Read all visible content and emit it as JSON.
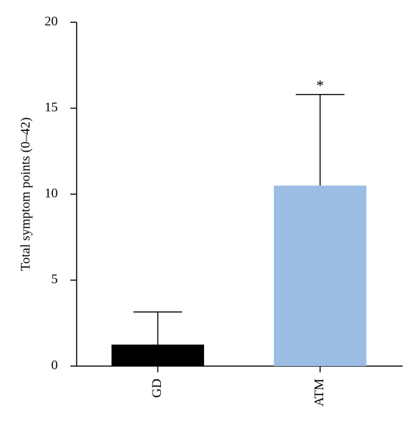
{
  "chart_data": {
    "type": "bar",
    "y_label": "Total symptom points (0–42)",
    "categories": [
      "GD",
      "ATM"
    ],
    "values": [
      1.25,
      10.5
    ],
    "errors": [
      1.9,
      5.3
    ],
    "colors": [
      "#000000",
      "#9bbde3"
    ],
    "annotations": [
      null,
      "*"
    ],
    "ylim": [
      0,
      20
    ],
    "yticks": [
      0,
      5,
      10,
      15,
      20
    ]
  }
}
